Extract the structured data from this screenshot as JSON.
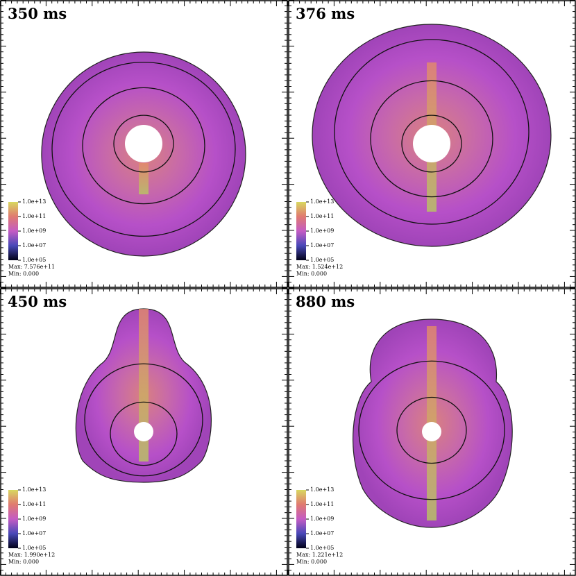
{
  "panels": [
    {
      "title": "350 ms",
      "colorbar": [
        "1.0e+13",
        "1.0e+11",
        "1.0e+09",
        "1.0e+07",
        "1.0e+05"
      ],
      "max": "Max:  7.576e+11",
      "min": "Min:  0.000"
    },
    {
      "title": "376 ms",
      "colorbar": [
        "1.0e+13",
        "1.0e+11",
        "1.0e+09",
        "1.0e+07",
        "1.0e+05"
      ],
      "max": "Max:  1.524e+12",
      "min": "Min:  0.000"
    },
    {
      "title": "450 ms",
      "colorbar": [
        "1.0e+13",
        "1.0e+11",
        "1.0e+09",
        "1.0e+07",
        "1.0e+05"
      ],
      "max": "Max:  1.990e+12",
      "min": "Min:  0.000"
    },
    {
      "title": "880 ms",
      "colorbar": [
        "1.0e+13",
        "1.0e+11",
        "1.0e+09",
        "1.0e+07",
        "1.0e+05"
      ],
      "max": "Max:  1.221e+12",
      "min": "Min:  0.000"
    }
  ]
}
